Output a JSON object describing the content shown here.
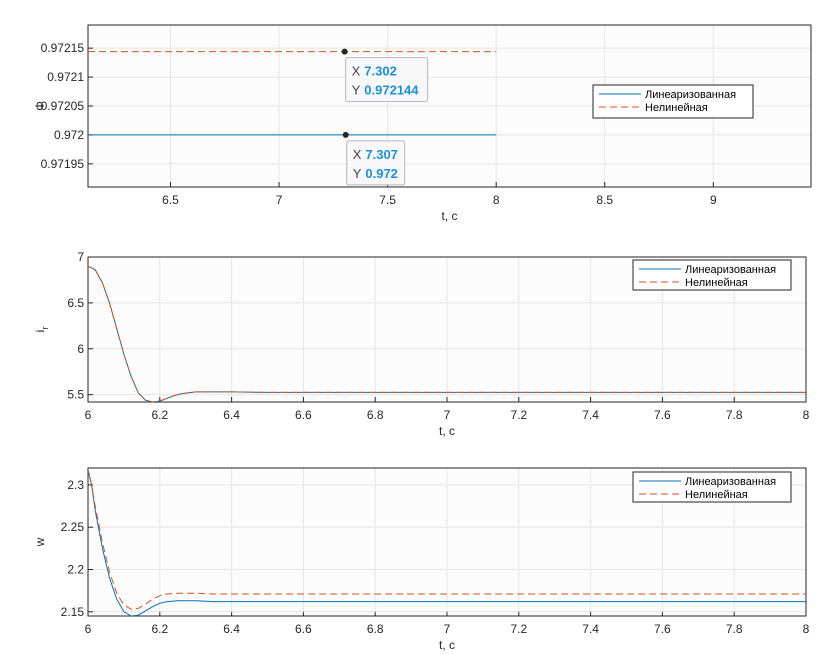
{
  "chart_data": [
    {
      "type": "line",
      "xlabel": "t, c",
      "ylabel": "Φ",
      "xlim": [
        6.12,
        9.45
      ],
      "ylim": [
        0.97191,
        0.97219
      ],
      "xticks": [
        "6.5",
        "7",
        "7.5",
        "8",
        "8.5",
        "9"
      ],
      "yticks": [
        "0.97195",
        "0.972",
        "0.97205",
        "0.9721",
        "0.97215"
      ],
      "grid": true,
      "legend_position": "right",
      "series": [
        {
          "name": "Линеаризованная",
          "color": "#0072BD",
          "style": "solid",
          "x": [
            6.12,
            8.0
          ],
          "y": [
            0.972,
            0.972
          ]
        },
        {
          "name": "Нелинейная",
          "color": "#D95319",
          "style": "dashed",
          "x": [
            6.12,
            8.0
          ],
          "y": [
            0.972144,
            0.972144
          ]
        }
      ],
      "datatips": [
        {
          "x": 7.302,
          "y": 0.972144,
          "x_label": "X",
          "x_text": "7.302",
          "y_label": "Y",
          "y_text": "0.972144"
        },
        {
          "x": 7.307,
          "y": 0.972,
          "x_label": "X",
          "x_text": "7.307",
          "y_label": "Y",
          "y_text": "0.972"
        }
      ]
    },
    {
      "type": "line",
      "xlabel": "t, c",
      "ylabel": "i",
      "ylabel_sub": "r",
      "xlim": [
        6,
        8
      ],
      "ylim": [
        5.42,
        7
      ],
      "xticks": [
        "6",
        "6.2",
        "6.4",
        "6.6",
        "6.8",
        "7",
        "7.2",
        "7.4",
        "7.6",
        "7.8",
        "8"
      ],
      "yticks": [
        "5.5",
        "6",
        "6.5",
        "7"
      ],
      "grid": true,
      "legend_position": "top-right",
      "series": [
        {
          "name": "Линеаризованная",
          "color": "#0072BD",
          "style": "solid",
          "x": [
            6.0,
            6.02,
            6.04,
            6.06,
            6.08,
            6.1,
            6.12,
            6.14,
            6.16,
            6.18,
            6.2,
            6.22,
            6.24,
            6.26,
            6.28,
            6.3,
            6.32,
            6.35,
            6.4,
            6.5,
            6.6,
            7.0,
            7.5,
            8.0
          ],
          "y": [
            6.9,
            6.86,
            6.72,
            6.5,
            6.22,
            5.94,
            5.7,
            5.52,
            5.44,
            5.42,
            5.43,
            5.46,
            5.49,
            5.51,
            5.52,
            5.53,
            5.53,
            5.53,
            5.53,
            5.525,
            5.525,
            5.525,
            5.525,
            5.525
          ]
        },
        {
          "name": "Нелинейная",
          "color": "#D95319",
          "style": "dashed",
          "x": [
            6.0,
            6.02,
            6.04,
            6.06,
            6.08,
            6.1,
            6.12,
            6.14,
            6.16,
            6.18,
            6.2,
            6.22,
            6.24,
            6.26,
            6.28,
            6.3,
            6.32,
            6.35,
            6.4,
            6.5,
            6.6,
            7.0,
            7.5,
            8.0
          ],
          "y": [
            6.9,
            6.86,
            6.72,
            6.5,
            6.22,
            5.94,
            5.7,
            5.52,
            5.44,
            5.42,
            5.43,
            5.46,
            5.49,
            5.51,
            5.52,
            5.53,
            5.53,
            5.53,
            5.53,
            5.525,
            5.525,
            5.525,
            5.525,
            5.525
          ]
        }
      ]
    },
    {
      "type": "line",
      "xlabel": "t, c",
      "ylabel": "w",
      "xlim": [
        6,
        8
      ],
      "ylim": [
        2.145,
        2.32
      ],
      "xticks": [
        "6",
        "6.2",
        "6.4",
        "6.6",
        "6.8",
        "7",
        "7.2",
        "7.4",
        "7.6",
        "7.8",
        "8"
      ],
      "yticks": [
        "2.15",
        "2.2",
        "2.25",
        "2.3"
      ],
      "grid": true,
      "legend_position": "top-right",
      "series": [
        {
          "name": "Линеаризованная",
          "color": "#0072BD",
          "style": "solid",
          "x": [
            6.0,
            6.01,
            6.02,
            6.04,
            6.06,
            6.08,
            6.1,
            6.12,
            6.14,
            6.16,
            6.18,
            6.2,
            6.22,
            6.25,
            6.28,
            6.3,
            6.35,
            6.4,
            6.5,
            7.0,
            7.5,
            8.0
          ],
          "y": [
            2.318,
            2.3,
            2.27,
            2.225,
            2.19,
            2.165,
            2.15,
            2.145,
            2.146,
            2.151,
            2.156,
            2.16,
            2.162,
            2.163,
            2.163,
            2.163,
            2.162,
            2.162,
            2.162,
            2.162,
            2.162,
            2.162
          ]
        },
        {
          "name": "Нелинейная",
          "color": "#D95319",
          "style": "dashed",
          "x": [
            6.0,
            6.01,
            6.02,
            6.04,
            6.06,
            6.08,
            6.1,
            6.12,
            6.14,
            6.16,
            6.18,
            6.2,
            6.22,
            6.25,
            6.28,
            6.3,
            6.35,
            6.4,
            6.5,
            7.0,
            7.5,
            8.0
          ],
          "y": [
            2.318,
            2.3,
            2.275,
            2.232,
            2.197,
            2.172,
            2.158,
            2.153,
            2.154,
            2.159,
            2.165,
            2.169,
            2.171,
            2.172,
            2.172,
            2.172,
            2.171,
            2.171,
            2.171,
            2.171,
            2.171,
            2.171
          ]
        }
      ]
    }
  ]
}
